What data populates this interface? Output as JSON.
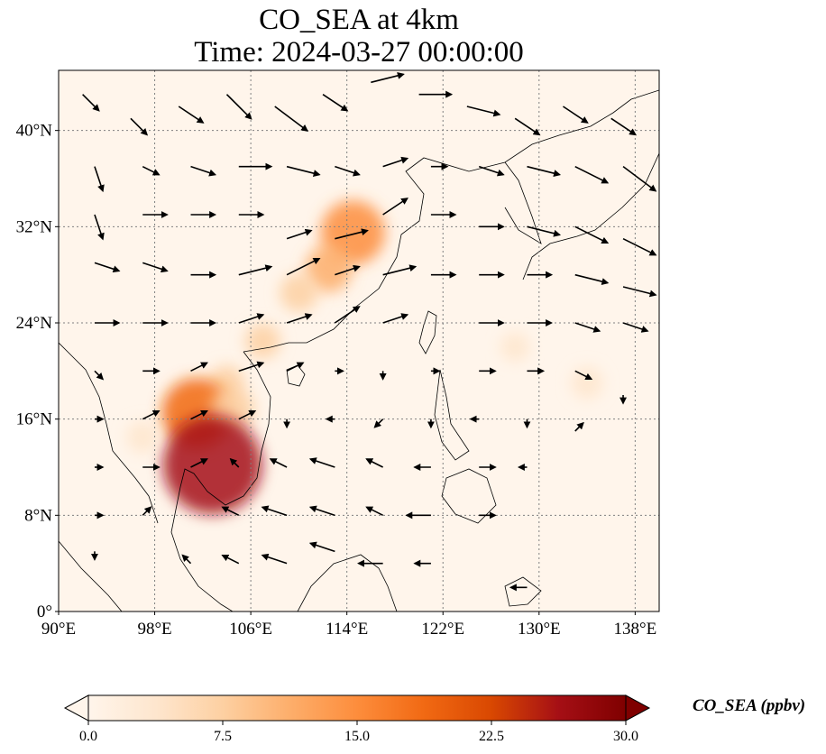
{
  "title": {
    "line1": "CO_SEA at 4km",
    "line2": "Time: 2024-03-27 00:00:00"
  },
  "map": {
    "extent": {
      "lon": [
        90,
        140
      ],
      "lat": [
        0,
        45
      ]
    },
    "lon_ticks": [
      {
        "value": 90,
        "label": "90°E"
      },
      {
        "value": 98,
        "label": "98°E"
      },
      {
        "value": 106,
        "label": "106°E"
      },
      {
        "value": 114,
        "label": "114°E"
      },
      {
        "value": 122,
        "label": "122°E"
      },
      {
        "value": 130,
        "label": "130°E"
      },
      {
        "value": 138,
        "label": "138°E"
      }
    ],
    "lat_ticks": [
      {
        "value": 0,
        "label": "0°"
      },
      {
        "value": 8,
        "label": "8°N"
      },
      {
        "value": 16,
        "label": "16°N"
      },
      {
        "value": 24,
        "label": "24°N"
      },
      {
        "value": 32,
        "label": "32°N"
      },
      {
        "value": 40,
        "label": "40°N"
      }
    ],
    "gridlines": true,
    "colormap": "OrRd",
    "colors": {
      "background": "#fff5eb",
      "low": "#fdebd3",
      "mid": "#fdc48c",
      "high": "#e34a33",
      "max": "#7f0000",
      "coastline": "#000000",
      "gridline": "#808080",
      "arrow": "#000000"
    },
    "co_plumes": [
      {
        "lon": 114.5,
        "lat": 31.5,
        "value": 16
      },
      {
        "lon": 112.5,
        "lat": 28.5,
        "value": 10
      },
      {
        "lon": 110.0,
        "lat": 26.5,
        "value": 7
      },
      {
        "lon": 107.0,
        "lat": 22.5,
        "value": 6
      },
      {
        "lon": 104.0,
        "lat": 19.0,
        "value": 6
      },
      {
        "lon": 101.5,
        "lat": 16.5,
        "value": 18
      },
      {
        "lon": 104.5,
        "lat": 16.8,
        "value": 9
      },
      {
        "lon": 102.8,
        "lat": 12.2,
        "value": 28
      },
      {
        "lon": 97.0,
        "lat": 14.5,
        "value": 5
      },
      {
        "lon": 128.0,
        "lat": 22.0,
        "value": 4
      },
      {
        "lon": 134.0,
        "lat": 19.0,
        "value": 5
      }
    ],
    "wind_vectors": [
      {
        "lon": 92,
        "lat": 43,
        "u": 2,
        "v": -2
      },
      {
        "lon": 96,
        "lat": 41,
        "u": 2,
        "v": -2
      },
      {
        "lon": 100,
        "lat": 42,
        "u": 3,
        "v": -2
      },
      {
        "lon": 104,
        "lat": 43,
        "u": 3,
        "v": -3
      },
      {
        "lon": 108,
        "lat": 42,
        "u": 4,
        "v": -3
      },
      {
        "lon": 112,
        "lat": 43,
        "u": 3,
        "v": -2
      },
      {
        "lon": 116,
        "lat": 44,
        "u": 4,
        "v": 1
      },
      {
        "lon": 120,
        "lat": 43,
        "u": 4,
        "v": 0
      },
      {
        "lon": 124,
        "lat": 42,
        "u": 4,
        "v": -1
      },
      {
        "lon": 128,
        "lat": 41,
        "u": 3,
        "v": -2
      },
      {
        "lon": 132,
        "lat": 42,
        "u": 3,
        "v": -2
      },
      {
        "lon": 136,
        "lat": 41,
        "u": 3,
        "v": -2
      },
      {
        "lon": 93,
        "lat": 37,
        "u": 1,
        "v": -3
      },
      {
        "lon": 97,
        "lat": 37,
        "u": 2,
        "v": -1
      },
      {
        "lon": 101,
        "lat": 37,
        "u": 3,
        "v": -1
      },
      {
        "lon": 105,
        "lat": 37,
        "u": 4,
        "v": 0
      },
      {
        "lon": 109,
        "lat": 37,
        "u": 4,
        "v": -1
      },
      {
        "lon": 113,
        "lat": 37,
        "u": 3,
        "v": -1
      },
      {
        "lon": 117,
        "lat": 37,
        "u": 3,
        "v": 1
      },
      {
        "lon": 121,
        "lat": 37,
        "u": 2,
        "v": 0
      },
      {
        "lon": 125,
        "lat": 37,
        "u": 3,
        "v": -1
      },
      {
        "lon": 129,
        "lat": 37,
        "u": 4,
        "v": -1
      },
      {
        "lon": 133,
        "lat": 37,
        "u": 4,
        "v": -2
      },
      {
        "lon": 137,
        "lat": 37,
        "u": 4,
        "v": -3
      },
      {
        "lon": 93,
        "lat": 33,
        "u": 1,
        "v": -3
      },
      {
        "lon": 97,
        "lat": 33,
        "u": 3,
        "v": 0
      },
      {
        "lon": 101,
        "lat": 33,
        "u": 3,
        "v": 0
      },
      {
        "lon": 105,
        "lat": 33,
        "u": 3,
        "v": 0
      },
      {
        "lon": 109,
        "lat": 31,
        "u": 3,
        "v": 1
      },
      {
        "lon": 113,
        "lat": 31,
        "u": 4,
        "v": 1
      },
      {
        "lon": 117,
        "lat": 33,
        "u": 3,
        "v": 2
      },
      {
        "lon": 121,
        "lat": 33,
        "u": 3,
        "v": 0
      },
      {
        "lon": 125,
        "lat": 32,
        "u": 3,
        "v": 0
      },
      {
        "lon": 129,
        "lat": 32,
        "u": 4,
        "v": -1
      },
      {
        "lon": 133,
        "lat": 32,
        "u": 4,
        "v": -2
      },
      {
        "lon": 137,
        "lat": 31,
        "u": 4,
        "v": -2
      },
      {
        "lon": 93,
        "lat": 29,
        "u": 3,
        "v": -1
      },
      {
        "lon": 97,
        "lat": 29,
        "u": 3,
        "v": -1
      },
      {
        "lon": 101,
        "lat": 28,
        "u": 3,
        "v": 0
      },
      {
        "lon": 105,
        "lat": 28,
        "u": 4,
        "v": 1
      },
      {
        "lon": 109,
        "lat": 28,
        "u": 4,
        "v": 2
      },
      {
        "lon": 113,
        "lat": 28,
        "u": 3,
        "v": 1
      },
      {
        "lon": 117,
        "lat": 28,
        "u": 4,
        "v": 1
      },
      {
        "lon": 121,
        "lat": 28,
        "u": 3,
        "v": 0
      },
      {
        "lon": 125,
        "lat": 28,
        "u": 3,
        "v": 0
      },
      {
        "lon": 129,
        "lat": 28,
        "u": 3,
        "v": 0
      },
      {
        "lon": 133,
        "lat": 28,
        "u": 4,
        "v": -1
      },
      {
        "lon": 137,
        "lat": 27,
        "u": 4,
        "v": -1
      },
      {
        "lon": 93,
        "lat": 24,
        "u": 3,
        "v": 0
      },
      {
        "lon": 97,
        "lat": 24,
        "u": 3,
        "v": 0
      },
      {
        "lon": 101,
        "lat": 24,
        "u": 3,
        "v": 0
      },
      {
        "lon": 105,
        "lat": 24,
        "u": 3,
        "v": 1
      },
      {
        "lon": 109,
        "lat": 24,
        "u": 3,
        "v": 1
      },
      {
        "lon": 113,
        "lat": 24,
        "u": 3,
        "v": 2
      },
      {
        "lon": 117,
        "lat": 24,
        "u": 3,
        "v": 1
      },
      {
        "lon": 125,
        "lat": 24,
        "u": 3,
        "v": 0
      },
      {
        "lon": 129,
        "lat": 24,
        "u": 3,
        "v": 0
      },
      {
        "lon": 133,
        "lat": 24,
        "u": 3,
        "v": -1
      },
      {
        "lon": 137,
        "lat": 24,
        "u": 3,
        "v": -1
      },
      {
        "lon": 93,
        "lat": 20,
        "u": 1,
        "v": -1
      },
      {
        "lon": 97,
        "lat": 20,
        "u": 2,
        "v": 0
      },
      {
        "lon": 101,
        "lat": 20,
        "u": 2,
        "v": 1
      },
      {
        "lon": 105,
        "lat": 20,
        "u": 3,
        "v": 1
      },
      {
        "lon": 109,
        "lat": 20,
        "u": 2,
        "v": 1
      },
      {
        "lon": 113,
        "lat": 20,
        "u": 1,
        "v": 0
      },
      {
        "lon": 117,
        "lat": 20,
        "u": 0,
        "v": -1
      },
      {
        "lon": 121,
        "lat": 20,
        "u": 1,
        "v": 0
      },
      {
        "lon": 125,
        "lat": 20,
        "u": 2,
        "v": 0
      },
      {
        "lon": 129,
        "lat": 20,
        "u": 2,
        "v": 0
      },
      {
        "lon": 133,
        "lat": 20,
        "u": 2,
        "v": -1
      },
      {
        "lon": 137,
        "lat": 18,
        "u": 0,
        "v": -1
      },
      {
        "lon": 93,
        "lat": 16,
        "u": 1,
        "v": 0
      },
      {
        "lon": 97,
        "lat": 16,
        "u": 2,
        "v": 1
      },
      {
        "lon": 101,
        "lat": 16,
        "u": 2,
        "v": 1
      },
      {
        "lon": 105,
        "lat": 16,
        "u": 2,
        "v": 1
      },
      {
        "lon": 109,
        "lat": 16,
        "u": 0,
        "v": -1
      },
      {
        "lon": 113,
        "lat": 16,
        "u": -1,
        "v": 0
      },
      {
        "lon": 117,
        "lat": 16,
        "u": -1,
        "v": -1
      },
      {
        "lon": 121,
        "lat": 16,
        "u": 0,
        "v": -1
      },
      {
        "lon": 125,
        "lat": 16,
        "u": -1,
        "v": 0
      },
      {
        "lon": 129,
        "lat": 16,
        "u": 0,
        "v": -1
      },
      {
        "lon": 133,
        "lat": 15,
        "u": 1,
        "v": 1
      },
      {
        "lon": 93,
        "lat": 12,
        "u": 1,
        "v": 0
      },
      {
        "lon": 97,
        "lat": 12,
        "u": 2,
        "v": 0
      },
      {
        "lon": 101,
        "lat": 12,
        "u": 2,
        "v": 1
      },
      {
        "lon": 105,
        "lat": 12,
        "u": -1,
        "v": 1
      },
      {
        "lon": 109,
        "lat": 12,
        "u": -2,
        "v": 1
      },
      {
        "lon": 113,
        "lat": 12,
        "u": -3,
        "v": 1
      },
      {
        "lon": 117,
        "lat": 12,
        "u": -2,
        "v": 1
      },
      {
        "lon": 121,
        "lat": 12,
        "u": -2,
        "v": 0
      },
      {
        "lon": 125,
        "lat": 12,
        "u": 2,
        "v": 0
      },
      {
        "lon": 129,
        "lat": 12,
        "u": -1,
        "v": 0
      },
      {
        "lon": 93,
        "lat": 8,
        "u": 1,
        "v": 0
      },
      {
        "lon": 97,
        "lat": 8,
        "u": 1,
        "v": 1
      },
      {
        "lon": 105,
        "lat": 8,
        "u": -2,
        "v": 1
      },
      {
        "lon": 109,
        "lat": 8,
        "u": -3,
        "v": 1
      },
      {
        "lon": 113,
        "lat": 8,
        "u": -3,
        "v": 1
      },
      {
        "lon": 117,
        "lat": 8,
        "u": -2,
        "v": 1
      },
      {
        "lon": 121,
        "lat": 8,
        "u": -3,
        "v": 0
      },
      {
        "lon": 125,
        "lat": 8,
        "u": 2,
        "v": 0
      },
      {
        "lon": 93,
        "lat": 5,
        "u": 0,
        "v": -1
      },
      {
        "lon": 101,
        "lat": 4,
        "u": -1,
        "v": 1
      },
      {
        "lon": 105,
        "lat": 4,
        "u": -2,
        "v": 1
      },
      {
        "lon": 109,
        "lat": 4,
        "u": -3,
        "v": 1
      },
      {
        "lon": 113,
        "lat": 5,
        "u": -3,
        "v": 1
      },
      {
        "lon": 117,
        "lat": 4,
        "u": -3,
        "v": 0
      },
      {
        "lon": 121,
        "lat": 4,
        "u": -2,
        "v": 0
      },
      {
        "lon": 129,
        "lat": 2,
        "u": -2,
        "v": 0
      }
    ]
  },
  "colorbar": {
    "label": "CO_SEA (ppbv)",
    "range": [
      0,
      30
    ],
    "extend": "both",
    "ticks": [
      {
        "value": 0,
        "label": "0.0"
      },
      {
        "value": 7.5,
        "label": "7.5"
      },
      {
        "value": 15,
        "label": "15.0"
      },
      {
        "value": 22.5,
        "label": "22.5"
      },
      {
        "value": 30,
        "label": "30.0"
      }
    ],
    "stops": [
      "#fff5eb",
      "#fee6ce",
      "#fdd0a2",
      "#fdae6b",
      "#fd8d3c",
      "#f16913",
      "#d94801",
      "#a50f15",
      "#7f0000"
    ]
  }
}
